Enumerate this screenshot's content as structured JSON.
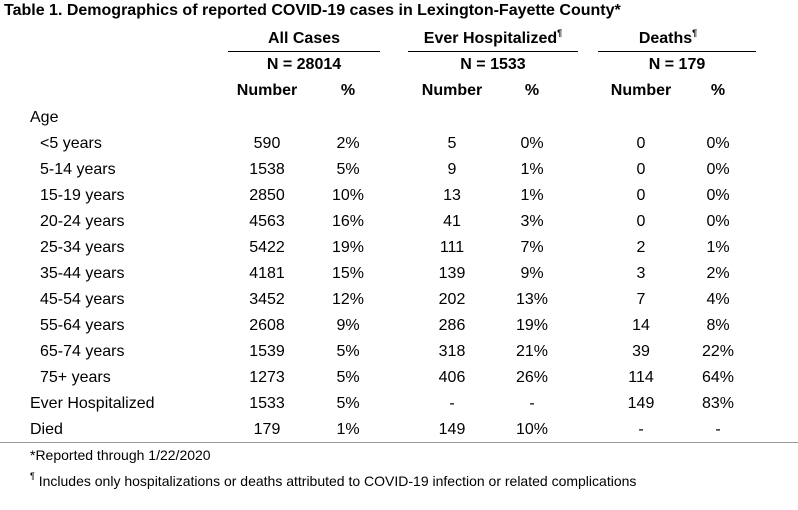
{
  "title": "Table 1. Demographics of reported COVID-19 cases in Lexington-Fayette County*",
  "groups": [
    {
      "label": "All Cases",
      "mark": "",
      "n": "N = 28014"
    },
    {
      "label": "Ever Hospitalized",
      "mark": "¶",
      "n": "N = 1533"
    },
    {
      "label": "Deaths",
      "mark": "¶",
      "n": "N = 179"
    }
  ],
  "subheaders": {
    "number": "Number",
    "pct": "%"
  },
  "section_label": "Age",
  "rows": [
    {
      "label": "<5 years",
      "indent": true,
      "cells": [
        "590",
        "2%",
        "5",
        "0%",
        "0",
        "0%"
      ]
    },
    {
      "label": "5-14 years",
      "indent": true,
      "cells": [
        "1538",
        "5%",
        "9",
        "1%",
        "0",
        "0%"
      ]
    },
    {
      "label": "15-19 years",
      "indent": true,
      "cells": [
        "2850",
        "10%",
        "13",
        "1%",
        "0",
        "0%"
      ]
    },
    {
      "label": "20-24 years",
      "indent": true,
      "cells": [
        "4563",
        "16%",
        "41",
        "3%",
        "0",
        "0%"
      ]
    },
    {
      "label": "25-34 years",
      "indent": true,
      "cells": [
        "5422",
        "19%",
        "111",
        "7%",
        "2",
        "1%"
      ]
    },
    {
      "label": "35-44 years",
      "indent": true,
      "cells": [
        "4181",
        "15%",
        "139",
        "9%",
        "3",
        "2%"
      ]
    },
    {
      "label": "45-54 years",
      "indent": true,
      "cells": [
        "3452",
        "12%",
        "202",
        "13%",
        "7",
        "4%"
      ]
    },
    {
      "label": "55-64 years",
      "indent": true,
      "cells": [
        "2608",
        "9%",
        "286",
        "19%",
        "14",
        "8%"
      ]
    },
    {
      "label": "65-74 years",
      "indent": true,
      "cells": [
        "1539",
        "5%",
        "318",
        "21%",
        "39",
        "22%"
      ]
    },
    {
      "label": "75+ years",
      "indent": true,
      "cells": [
        "1273",
        "5%",
        "406",
        "26%",
        "114",
        "64%"
      ]
    },
    {
      "label": "Ever Hospitalized",
      "indent": false,
      "cells": [
        "1533",
        "5%",
        "-",
        "-",
        "149",
        "83%"
      ]
    },
    {
      "label": "Died",
      "indent": false,
      "cells": [
        "179",
        "1%",
        "149",
        "10%",
        "-",
        "-"
      ]
    }
  ],
  "footnotes": [
    {
      "mark": "",
      "text": "*Reported through 1/22/2020"
    },
    {
      "mark": "¶",
      "text": " Includes only hospitalizations or deaths attributed to COVID-19 infection or related complications"
    }
  ]
}
